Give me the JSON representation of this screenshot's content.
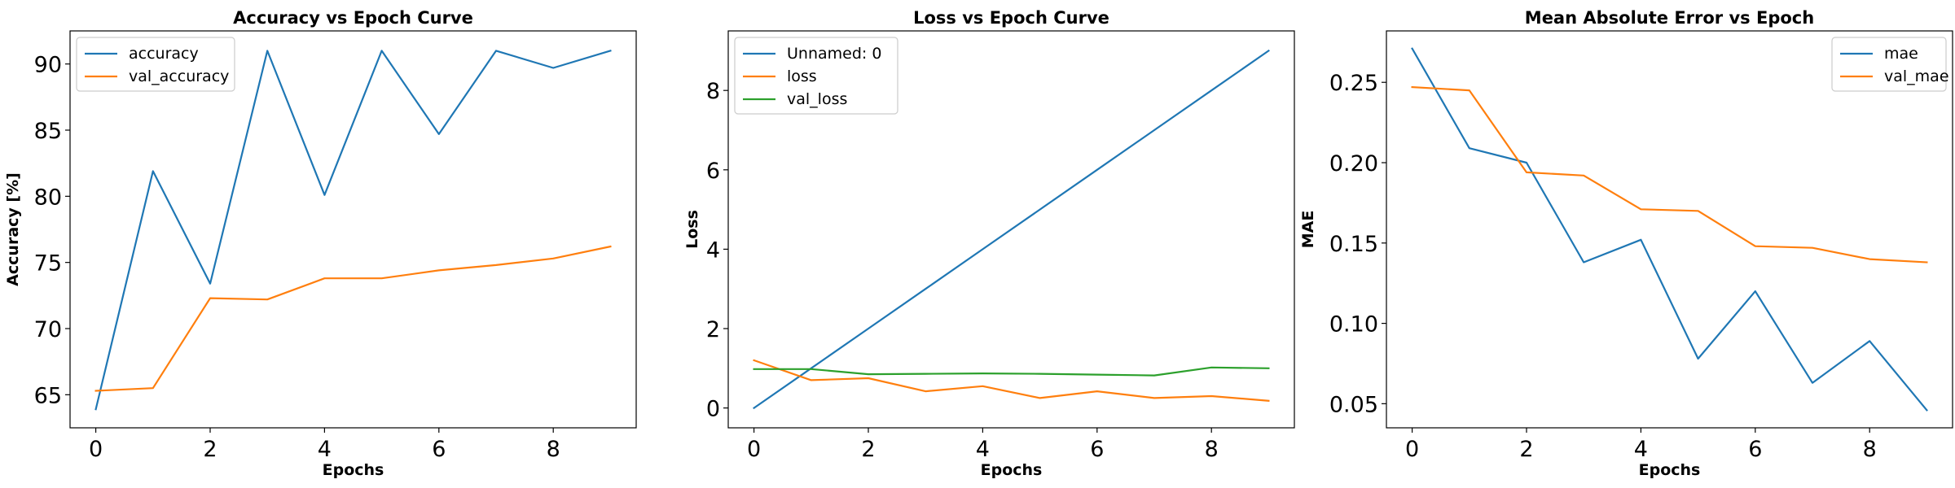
{
  "chart_data": [
    {
      "type": "line",
      "title": "Accuracy vs Epoch Curve",
      "xlabel": "Epochs",
      "ylabel": "Accuracy [%]",
      "xlim": [
        -0.45,
        9.45
      ],
      "ylim": [
        62.5,
        92.5
      ],
      "xticks": [
        0,
        2,
        4,
        6,
        8
      ],
      "yticks": [
        65,
        70,
        75,
        80,
        85,
        90
      ],
      "grid": false,
      "legend": "top-left",
      "x": [
        0,
        1,
        2,
        3,
        4,
        5,
        6,
        7,
        8,
        9
      ],
      "series": [
        {
          "name": "accuracy",
          "color": "#1f77b4",
          "values": [
            63.9,
            81.9,
            73.4,
            91.0,
            80.1,
            91.0,
            84.7,
            91.0,
            89.7,
            91.0
          ]
        },
        {
          "name": "val_accuracy",
          "color": "#ff7f0e",
          "values": [
            65.3,
            65.5,
            72.3,
            72.2,
            73.8,
            73.8,
            74.4,
            74.8,
            75.3,
            76.2
          ]
        }
      ]
    },
    {
      "type": "line",
      "title": "Loss vs Epoch Curve",
      "xlabel": "Epochs",
      "ylabel": "Loss",
      "xlim": [
        -0.45,
        9.45
      ],
      "ylim": [
        -0.5,
        9.5
      ],
      "xticks": [
        0,
        2,
        4,
        6,
        8
      ],
      "yticks": [
        0,
        2,
        4,
        6,
        8
      ],
      "grid": false,
      "legend": "top-left",
      "x": [
        0,
        1,
        2,
        3,
        4,
        5,
        6,
        7,
        8,
        9
      ],
      "series": [
        {
          "name": "Unnamed: 0",
          "color": "#1f77b4",
          "values": [
            0,
            1,
            2,
            3,
            4,
            5,
            6,
            7,
            8,
            9
          ]
        },
        {
          "name": "loss",
          "color": "#ff7f0e",
          "values": [
            1.2,
            0.7,
            0.75,
            0.42,
            0.55,
            0.25,
            0.42,
            0.25,
            0.3,
            0.18
          ]
        },
        {
          "name": "val_loss",
          "color": "#2ca02c",
          "values": [
            0.98,
            0.98,
            0.85,
            0.86,
            0.87,
            0.86,
            0.84,
            0.82,
            1.02,
            1.0
          ]
        }
      ]
    },
    {
      "type": "line",
      "title": "Mean Absolute Error vs Epoch",
      "xlabel": "Epochs",
      "ylabel": "MAE",
      "xlim": [
        -0.45,
        9.45
      ],
      "ylim": [
        0.035,
        0.282
      ],
      "xticks": [
        0,
        2,
        4,
        6,
        8
      ],
      "yticks": [
        0.05,
        0.1,
        0.15,
        0.2,
        0.25
      ],
      "yticklabels": [
        "0.05",
        "0.10",
        "0.15",
        "0.20",
        "0.25"
      ],
      "grid": false,
      "legend": "top-right",
      "x": [
        0,
        1,
        2,
        3,
        4,
        5,
        6,
        7,
        8,
        9
      ],
      "series": [
        {
          "name": "mae",
          "color": "#1f77b4",
          "values": [
            0.271,
            0.209,
            0.2,
            0.138,
            0.152,
            0.078,
            0.12,
            0.063,
            0.089,
            0.046
          ]
        },
        {
          "name": "val_mae",
          "color": "#ff7f0e",
          "values": [
            0.247,
            0.245,
            0.194,
            0.192,
            0.171,
            0.17,
            0.148,
            0.147,
            0.14,
            0.138
          ]
        }
      ]
    }
  ]
}
